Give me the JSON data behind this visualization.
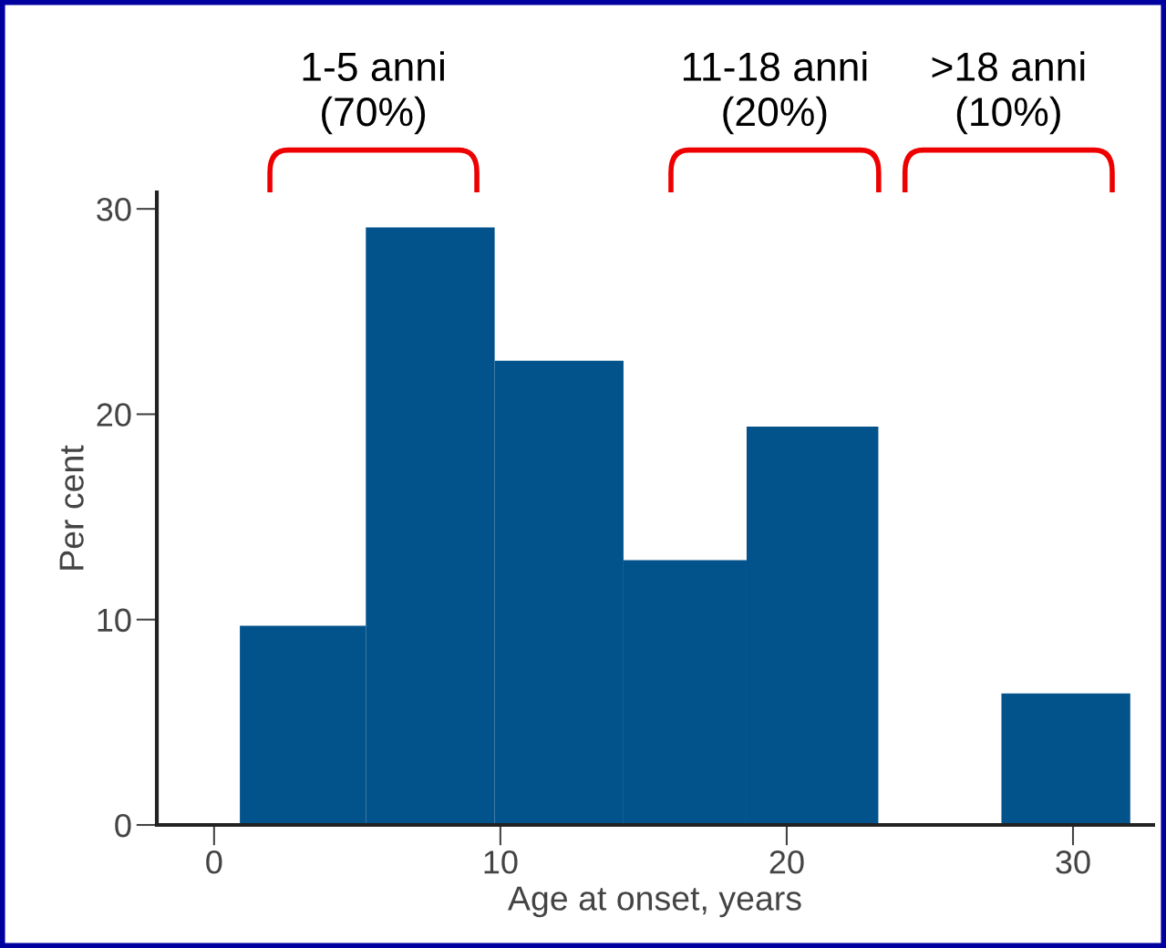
{
  "chart_data": {
    "type": "histogram",
    "xlabel": "Age at onset, years",
    "ylabel": "Per cent",
    "bins": [
      0.9,
      5.3,
      9.8,
      14.3,
      18.6,
      23.2,
      27.5,
      32.0
    ],
    "values": [
      9.7,
      29.1,
      22.6,
      12.9,
      19.4,
      0,
      6.4
    ],
    "color": "#02538b",
    "xlim": [
      -2,
      32.8
    ],
    "ylim": [
      0,
      30.8
    ],
    "xticks": [
      0,
      10,
      20,
      30
    ],
    "yticks": [
      0,
      10,
      20,
      30
    ],
    "grid": false,
    "legend": false,
    "annotations": [
      "1-5 anni\n(70%)",
      "11-18 anni\n(20%)",
      ">18 anni\n(10%)"
    ]
  }
}
